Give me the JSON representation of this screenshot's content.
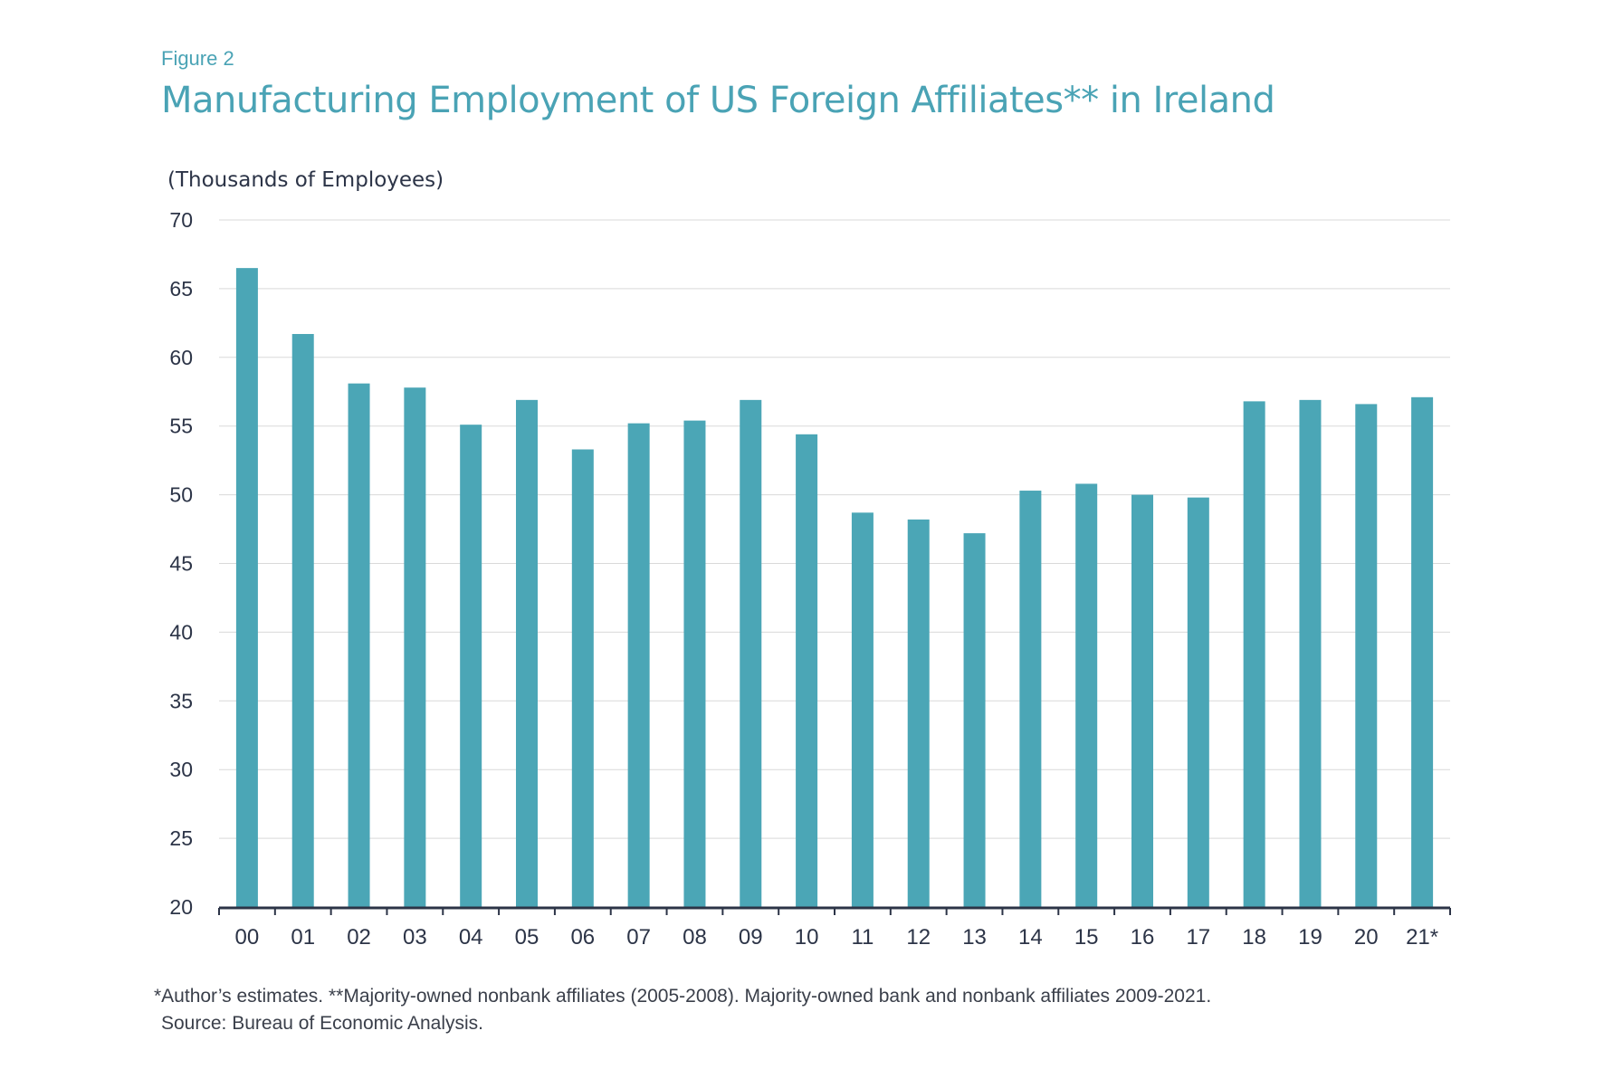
{
  "figure_label": "Figure 2",
  "title": "Manufacturing Employment of US Foreign Affiliates** in Ireland",
  "footnote": {
    "line1": "*Author’s estimates. **Majority-owned nonbank affiliates (2005-2008). Majority-owned bank and nonbank affiliates 2009-2021.",
    "line2": "Source: Bureau of Economic Analysis."
  },
  "colors": {
    "bar": "#4ba6b6",
    "title": "#4aa3b5",
    "axis": "#2c3447",
    "grid": "#d9d9d9"
  },
  "chart_data": {
    "type": "bar",
    "title": "Manufacturing Employment of US Foreign Affiliates** in Ireland",
    "ylabel": "(Thousands of Employees)",
    "xlabel": "",
    "ylim": [
      20,
      70
    ],
    "yticks": [
      70,
      65,
      60,
      55,
      50,
      45,
      40,
      35,
      30,
      25,
      20
    ],
    "grid": true,
    "categories": [
      "00",
      "01",
      "02",
      "03",
      "04",
      "05",
      "06",
      "07",
      "08",
      "09",
      "10",
      "11",
      "12",
      "13",
      "14",
      "15",
      "16",
      "17",
      "18",
      "19",
      "20",
      "21*"
    ],
    "values": [
      66.5,
      61.7,
      58.1,
      57.8,
      55.1,
      56.9,
      53.3,
      55.2,
      55.4,
      56.9,
      54.4,
      48.7,
      48.2,
      47.2,
      50.3,
      50.8,
      50.0,
      49.8,
      56.8,
      56.9,
      56.6,
      57.1
    ]
  }
}
